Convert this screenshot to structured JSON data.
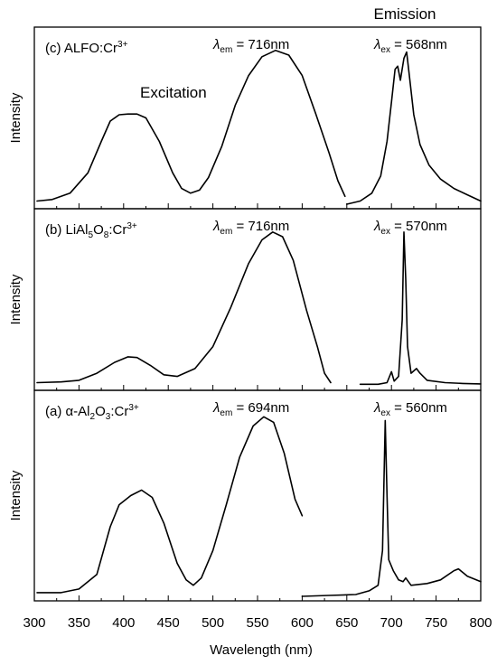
{
  "figure_title": "Emission",
  "chart_data": [
    {
      "type": "line",
      "panel_label": "(c) ALFO:Cr",
      "panel_label_sup": "3+",
      "ylabel": "Intensity",
      "annotation_inside": "Excitation",
      "lambda_em": {
        "symbol": "λ",
        "sub": "em",
        "text": " = 716nm"
      },
      "lambda_ex": {
        "symbol": "λ",
        "sub": "ex",
        "text": " = 568nm"
      },
      "xlim": [
        300,
        800
      ],
      "ylim": [
        0,
        1.1
      ],
      "series": [
        {
          "values": [
            [
              303,
              0.02
            ],
            [
              320,
              0.03
            ],
            [
              340,
              0.07
            ],
            [
              360,
              0.2
            ],
            [
              375,
              0.4
            ],
            [
              385,
              0.53
            ],
            [
              395,
              0.57
            ],
            [
              405,
              0.575
            ],
            [
              415,
              0.575
            ],
            [
              425,
              0.55
            ],
            [
              440,
              0.4
            ],
            [
              455,
              0.2
            ],
            [
              465,
              0.1
            ],
            [
              475,
              0.07
            ],
            [
              485,
              0.09
            ],
            [
              495,
              0.17
            ],
            [
              510,
              0.37
            ],
            [
              525,
              0.63
            ],
            [
              540,
              0.82
            ],
            [
              555,
              0.94
            ],
            [
              570,
              0.98
            ],
            [
              585,
              0.95
            ],
            [
              600,
              0.82
            ],
            [
              615,
              0.58
            ],
            [
              630,
              0.33
            ],
            [
              640,
              0.15
            ],
            [
              648,
              0.05
            ]
          ]
        },
        {
          "values": [
            [
              650,
              0.0
            ],
            [
              665,
              0.02
            ],
            [
              678,
              0.07
            ],
            [
              688,
              0.18
            ],
            [
              695,
              0.4
            ],
            [
              700,
              0.65
            ],
            [
              704,
              0.86
            ],
            [
              707,
              0.88
            ],
            [
              710,
              0.79
            ],
            [
              714,
              0.93
            ],
            [
              717,
              0.97
            ],
            [
              720,
              0.82
            ],
            [
              725,
              0.57
            ],
            [
              732,
              0.38
            ],
            [
              742,
              0.25
            ],
            [
              755,
              0.16
            ],
            [
              770,
              0.1
            ],
            [
              785,
              0.06
            ],
            [
              800,
              0.02
            ]
          ]
        }
      ]
    },
    {
      "type": "line",
      "panel_label": "(b) LiAl",
      "panel_label_sub1": "5",
      "panel_label_mid": "O",
      "panel_label_sub2": "8",
      "panel_label_tail": ":Cr",
      "panel_label_sup": "3+",
      "ylabel": "Intensity",
      "lambda_em": {
        "symbol": "λ",
        "sub": "em",
        "text": " = 716nm"
      },
      "lambda_ex": {
        "symbol": "λ",
        "sub": "ex",
        "text": " = 570nm"
      },
      "xlim": [
        300,
        800
      ],
      "ylim": [
        0,
        1.1
      ],
      "series": [
        {
          "values": [
            [
              303,
              0.02
            ],
            [
              330,
              0.025
            ],
            [
              350,
              0.035
            ],
            [
              370,
              0.08
            ],
            [
              390,
              0.15
            ],
            [
              405,
              0.185
            ],
            [
              415,
              0.18
            ],
            [
              430,
              0.13
            ],
            [
              445,
              0.07
            ],
            [
              460,
              0.06
            ],
            [
              480,
              0.11
            ],
            [
              500,
              0.25
            ],
            [
              520,
              0.5
            ],
            [
              540,
              0.78
            ],
            [
              555,
              0.93
            ],
            [
              567,
              0.98
            ],
            [
              578,
              0.95
            ],
            [
              590,
              0.8
            ],
            [
              605,
              0.48
            ],
            [
              617,
              0.25
            ],
            [
              625,
              0.08
            ],
            [
              632,
              0.02
            ]
          ]
        },
        {
          "values": [
            [
              665,
              0.01
            ],
            [
              685,
              0.01
            ],
            [
              695,
              0.02
            ],
            [
              700,
              0.09
            ],
            [
              703,
              0.03
            ],
            [
              708,
              0.06
            ],
            [
              712,
              0.42
            ],
            [
              714,
              0.98
            ],
            [
              716,
              0.68
            ],
            [
              718,
              0.25
            ],
            [
              722,
              0.08
            ],
            [
              728,
              0.11
            ],
            [
              732,
              0.08
            ],
            [
              740,
              0.035
            ],
            [
              760,
              0.02
            ],
            [
              780,
              0.015
            ],
            [
              800,
              0.012
            ]
          ]
        }
      ]
    },
    {
      "type": "line",
      "panel_label": "(a) α-Al",
      "panel_label_sub1": "2",
      "panel_label_mid": "O",
      "panel_label_sub2": "3",
      "panel_label_tail": ":Cr",
      "panel_label_sup": "3+",
      "ylabel": "Intensity",
      "lambda_em": {
        "symbol": "λ",
        "sub": "em",
        "text": " = 694nm"
      },
      "lambda_ex": {
        "symbol": "λ",
        "sub": "ex",
        "text": " = 560nm"
      },
      "xlim": [
        300,
        800
      ],
      "ylim": [
        0,
        1.1
      ],
      "series": [
        {
          "values": [
            [
              303,
              0.02
            ],
            [
              330,
              0.02
            ],
            [
              350,
              0.04
            ],
            [
              370,
              0.12
            ],
            [
              385,
              0.38
            ],
            [
              395,
              0.5
            ],
            [
              408,
              0.55
            ],
            [
              420,
              0.58
            ],
            [
              432,
              0.54
            ],
            [
              445,
              0.4
            ],
            [
              460,
              0.18
            ],
            [
              470,
              0.09
            ],
            [
              478,
              0.06
            ],
            [
              487,
              0.1
            ],
            [
              500,
              0.25
            ],
            [
              515,
              0.5
            ],
            [
              530,
              0.76
            ],
            [
              545,
              0.93
            ],
            [
              557,
              0.98
            ],
            [
              568,
              0.95
            ],
            [
              580,
              0.78
            ],
            [
              592,
              0.53
            ],
            [
              600,
              0.44
            ]
          ]
        },
        {
          "values": [
            [
              600,
              0.0
            ],
            [
              630,
              0.005
            ],
            [
              660,
              0.01
            ],
            [
              675,
              0.03
            ],
            [
              685,
              0.06
            ],
            [
              690,
              0.25
            ],
            [
              692,
              0.72
            ],
            [
              693,
              0.96
            ],
            [
              695,
              0.55
            ],
            [
              697,
              0.2
            ],
            [
              702,
              0.14
            ],
            [
              708,
              0.09
            ],
            [
              713,
              0.08
            ],
            [
              716,
              0.1
            ],
            [
              722,
              0.06
            ],
            [
              740,
              0.07
            ],
            [
              755,
              0.09
            ],
            [
              770,
              0.14
            ],
            [
              775,
              0.15
            ],
            [
              785,
              0.11
            ],
            [
              800,
              0.08
            ]
          ]
        }
      ]
    }
  ],
  "x_axis": {
    "label": "Wavelength (nm)",
    "ticks": [
      "300",
      "350",
      "400",
      "450",
      "500",
      "550",
      "600",
      "650",
      "700",
      "750",
      "800"
    ]
  }
}
